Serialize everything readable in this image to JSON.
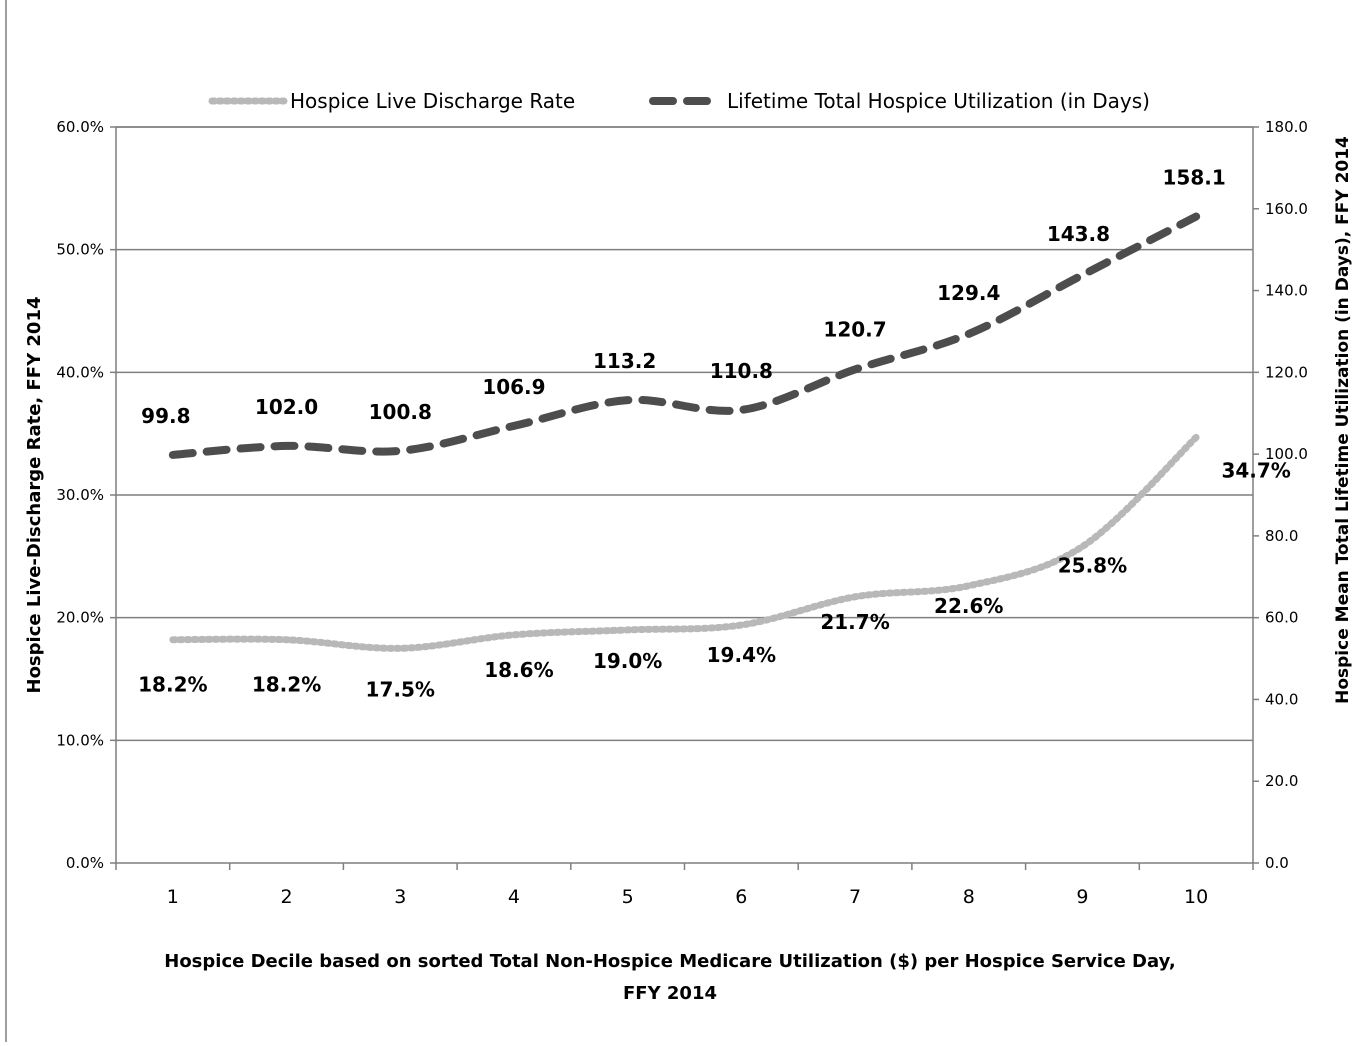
{
  "chart_data": {
    "type": "line",
    "title": "",
    "categories": [
      "1",
      "2",
      "3",
      "4",
      "5",
      "6",
      "7",
      "8",
      "9",
      "10"
    ],
    "xlabel_lines": [
      "Hospice Decile based on sorted Total Non-Hospice Medicare Utilization ($) per Hospice Service Day,",
      "FFY 2014"
    ],
    "ylabel_left": "Hospice Live-Discharge Rate, FFY 2014",
    "ylabel_right": "Hospice Mean Total Lifetime Utilization (in Days), FFY 2014",
    "y_left": {
      "min": 0,
      "max": 60,
      "step": 10,
      "format": "percent",
      "tick_labels": [
        "0.0%",
        "10.0%",
        "20.0%",
        "30.0%",
        "40.0%",
        "50.0%",
        "60.0%"
      ]
    },
    "y_right": {
      "min": 0,
      "max": 180,
      "step": 20,
      "format": "number",
      "tick_labels": [
        "0.0",
        "20.0",
        "40.0",
        "60.0",
        "80.0",
        "100.0",
        "120.0",
        "140.0",
        "160.0",
        "180.0"
      ]
    },
    "grid": "horizontal",
    "legend_position": "top",
    "series": [
      {
        "name": "Hospice Live Discharge Rate",
        "axis": "left",
        "style": "dotted",
        "color": "#b8b8b8",
        "values": [
          18.2,
          18.2,
          17.5,
          18.6,
          19.0,
          19.4,
          21.7,
          22.6,
          25.8,
          34.7
        ],
        "labels": [
          "18.2%",
          "18.2%",
          "17.5%",
          "18.6%",
          "19.0%",
          "19.4%",
          "21.7%",
          "22.6%",
          "25.8%",
          "34.7%"
        ]
      },
      {
        "name": "Lifetime Total Hospice Utilization (in Days)",
        "axis": "right",
        "style": "dashed",
        "color": "#4d4d4d",
        "values": [
          99.8,
          102.0,
          100.8,
          106.9,
          113.2,
          110.8,
          120.7,
          129.4,
          143.8,
          158.1
        ],
        "labels": [
          "99.8",
          "102.0",
          "100.8",
          "106.9",
          "113.2",
          "110.8",
          "120.7",
          "129.4",
          "143.8",
          "158.1"
        ]
      }
    ]
  }
}
